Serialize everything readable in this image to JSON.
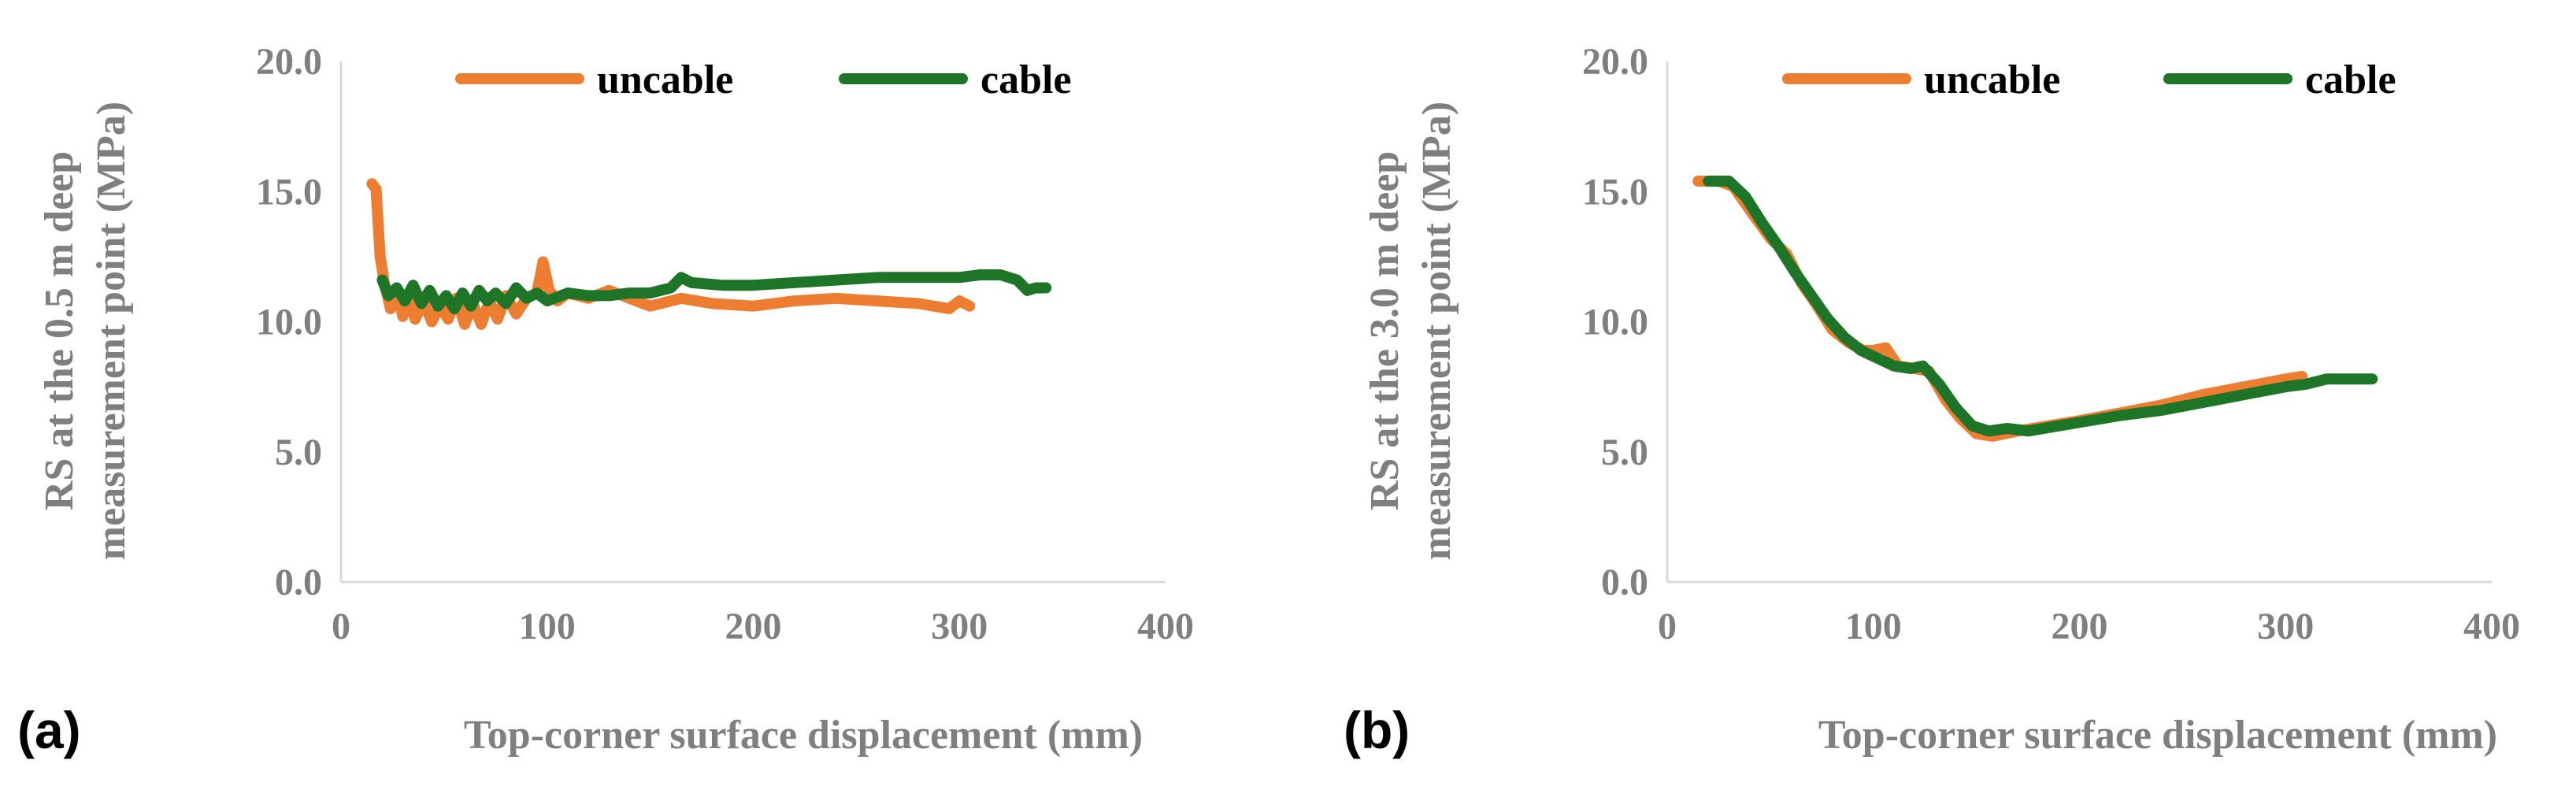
{
  "chart_data": [
    {
      "type": "line",
      "panel_label": "(a)",
      "xlabel": "Top-corner surface displacement (mm)",
      "ylabel_line1": "RS at the 0.5 m deep",
      "ylabel_line2": "measurement point (MPa)",
      "xlim": [
        0,
        400
      ],
      "ylim": [
        0,
        20
      ],
      "xticks": [
        0,
        100,
        200,
        300,
        400
      ],
      "yticks": [
        "0.0",
        "5.0",
        "10.0",
        "15.0",
        "20.0"
      ],
      "grid": false,
      "legend_position": "top",
      "series": [
        {
          "name": "uncable",
          "color": "#ED7D31",
          "points": [
            [
              15,
              15.3
            ],
            [
              17,
              15.1
            ],
            [
              19,
              12.5
            ],
            [
              21,
              11.5
            ],
            [
              24,
              10.5
            ],
            [
              27,
              11.2
            ],
            [
              30,
              10.2
            ],
            [
              33,
              11.0
            ],
            [
              36,
              10.1
            ],
            [
              40,
              10.8
            ],
            [
              44,
              10.0
            ],
            [
              48,
              10.6
            ],
            [
              52,
              10.1
            ],
            [
              56,
              10.9
            ],
            [
              60,
              9.9
            ],
            [
              64,
              10.7
            ],
            [
              68,
              9.9
            ],
            [
              72,
              10.8
            ],
            [
              76,
              10.1
            ],
            [
              80,
              11.0
            ],
            [
              85,
              10.3
            ],
            [
              90,
              10.9
            ],
            [
              95,
              11.1
            ],
            [
              98,
              12.3
            ],
            [
              101,
              11.2
            ],
            [
              105,
              10.8
            ],
            [
              110,
              11.1
            ],
            [
              120,
              10.9
            ],
            [
              130,
              11.2
            ],
            [
              140,
              10.9
            ],
            [
              150,
              10.6
            ],
            [
              165,
              10.9
            ],
            [
              180,
              10.7
            ],
            [
              200,
              10.6
            ],
            [
              220,
              10.8
            ],
            [
              240,
              10.9
            ],
            [
              260,
              10.8
            ],
            [
              280,
              10.7
            ],
            [
              295,
              10.5
            ],
            [
              300,
              10.8
            ],
            [
              305,
              10.6
            ]
          ]
        },
        {
          "name": "cable",
          "color": "#1E7527",
          "points": [
            [
              20,
              11.6
            ],
            [
              23,
              11.0
            ],
            [
              27,
              11.3
            ],
            [
              31,
              10.8
            ],
            [
              35,
              11.4
            ],
            [
              39,
              10.7
            ],
            [
              43,
              11.2
            ],
            [
              47,
              10.6
            ],
            [
              51,
              11.0
            ],
            [
              55,
              10.5
            ],
            [
              59,
              11.1
            ],
            [
              63,
              10.6
            ],
            [
              67,
              11.2
            ],
            [
              71,
              10.8
            ],
            [
              75,
              11.1
            ],
            [
              80,
              10.7
            ],
            [
              85,
              11.3
            ],
            [
              90,
              10.9
            ],
            [
              95,
              11.1
            ],
            [
              100,
              10.8
            ],
            [
              110,
              11.1
            ],
            [
              120,
              11.0
            ],
            [
              130,
              11.0
            ],
            [
              140,
              11.1
            ],
            [
              150,
              11.1
            ],
            [
              160,
              11.3
            ],
            [
              165,
              11.7
            ],
            [
              170,
              11.5
            ],
            [
              185,
              11.4
            ],
            [
              200,
              11.4
            ],
            [
              220,
              11.5
            ],
            [
              240,
              11.6
            ],
            [
              260,
              11.7
            ],
            [
              280,
              11.7
            ],
            [
              300,
              11.7
            ],
            [
              310,
              11.8
            ],
            [
              320,
              11.8
            ],
            [
              328,
              11.6
            ],
            [
              333,
              11.2
            ],
            [
              337,
              11.3
            ],
            [
              342,
              11.3
            ]
          ]
        }
      ]
    },
    {
      "type": "line",
      "panel_label": "(b)",
      "xlabel": "Top-corner surface displacement (mm)",
      "ylabel_line1": "RS at the 3.0 m deep",
      "ylabel_line2": "measurement point (MPa)",
      "xlim": [
        0,
        400
      ],
      "ylim": [
        0,
        20
      ],
      "xticks": [
        0,
        100,
        200,
        300,
        400
      ],
      "yticks": [
        "0.0",
        "5.0",
        "10.0",
        "15.0",
        "20.0"
      ],
      "grid": false,
      "legend_position": "top",
      "series": [
        {
          "name": "uncable",
          "color": "#ED7D31",
          "points": [
            [
              15,
              15.4
            ],
            [
              25,
              15.4
            ],
            [
              32,
              15.2
            ],
            [
              40,
              14.3
            ],
            [
              50,
              13.2
            ],
            [
              58,
              12.6
            ],
            [
              65,
              11.5
            ],
            [
              72,
              10.7
            ],
            [
              80,
              9.7
            ],
            [
              88,
              9.2
            ],
            [
              95,
              8.9
            ],
            [
              100,
              8.9
            ],
            [
              106,
              9.0
            ],
            [
              112,
              8.3
            ],
            [
              120,
              8.2
            ],
            [
              127,
              8.1
            ],
            [
              135,
              7.0
            ],
            [
              142,
              6.3
            ],
            [
              150,
              5.7
            ],
            [
              158,
              5.6
            ],
            [
              170,
              5.8
            ],
            [
              185,
              6.0
            ],
            [
              200,
              6.2
            ],
            [
              220,
              6.5
            ],
            [
              240,
              6.8
            ],
            [
              260,
              7.2
            ],
            [
              280,
              7.5
            ],
            [
              300,
              7.8
            ],
            [
              308,
              7.9
            ]
          ]
        },
        {
          "name": "cable",
          "color": "#1E7527",
          "points": [
            [
              20,
              15.4
            ],
            [
              30,
              15.4
            ],
            [
              38,
              14.8
            ],
            [
              46,
              13.8
            ],
            [
              54,
              12.9
            ],
            [
              62,
              11.9
            ],
            [
              70,
              11.0
            ],
            [
              78,
              10.1
            ],
            [
              86,
              9.4
            ],
            [
              94,
              8.9
            ],
            [
              102,
              8.6
            ],
            [
              110,
              8.3
            ],
            [
              118,
              8.2
            ],
            [
              124,
              8.3
            ],
            [
              132,
              7.6
            ],
            [
              140,
              6.7
            ],
            [
              148,
              6.0
            ],
            [
              156,
              5.8
            ],
            [
              165,
              5.9
            ],
            [
              175,
              5.8
            ],
            [
              190,
              6.0
            ],
            [
              205,
              6.2
            ],
            [
              220,
              6.4
            ],
            [
              240,
              6.6
            ],
            [
              260,
              6.9
            ],
            [
              280,
              7.2
            ],
            [
              300,
              7.5
            ],
            [
              310,
              7.6
            ],
            [
              320,
              7.8
            ],
            [
              330,
              7.8
            ],
            [
              342,
              7.8
            ]
          ]
        }
      ]
    }
  ]
}
